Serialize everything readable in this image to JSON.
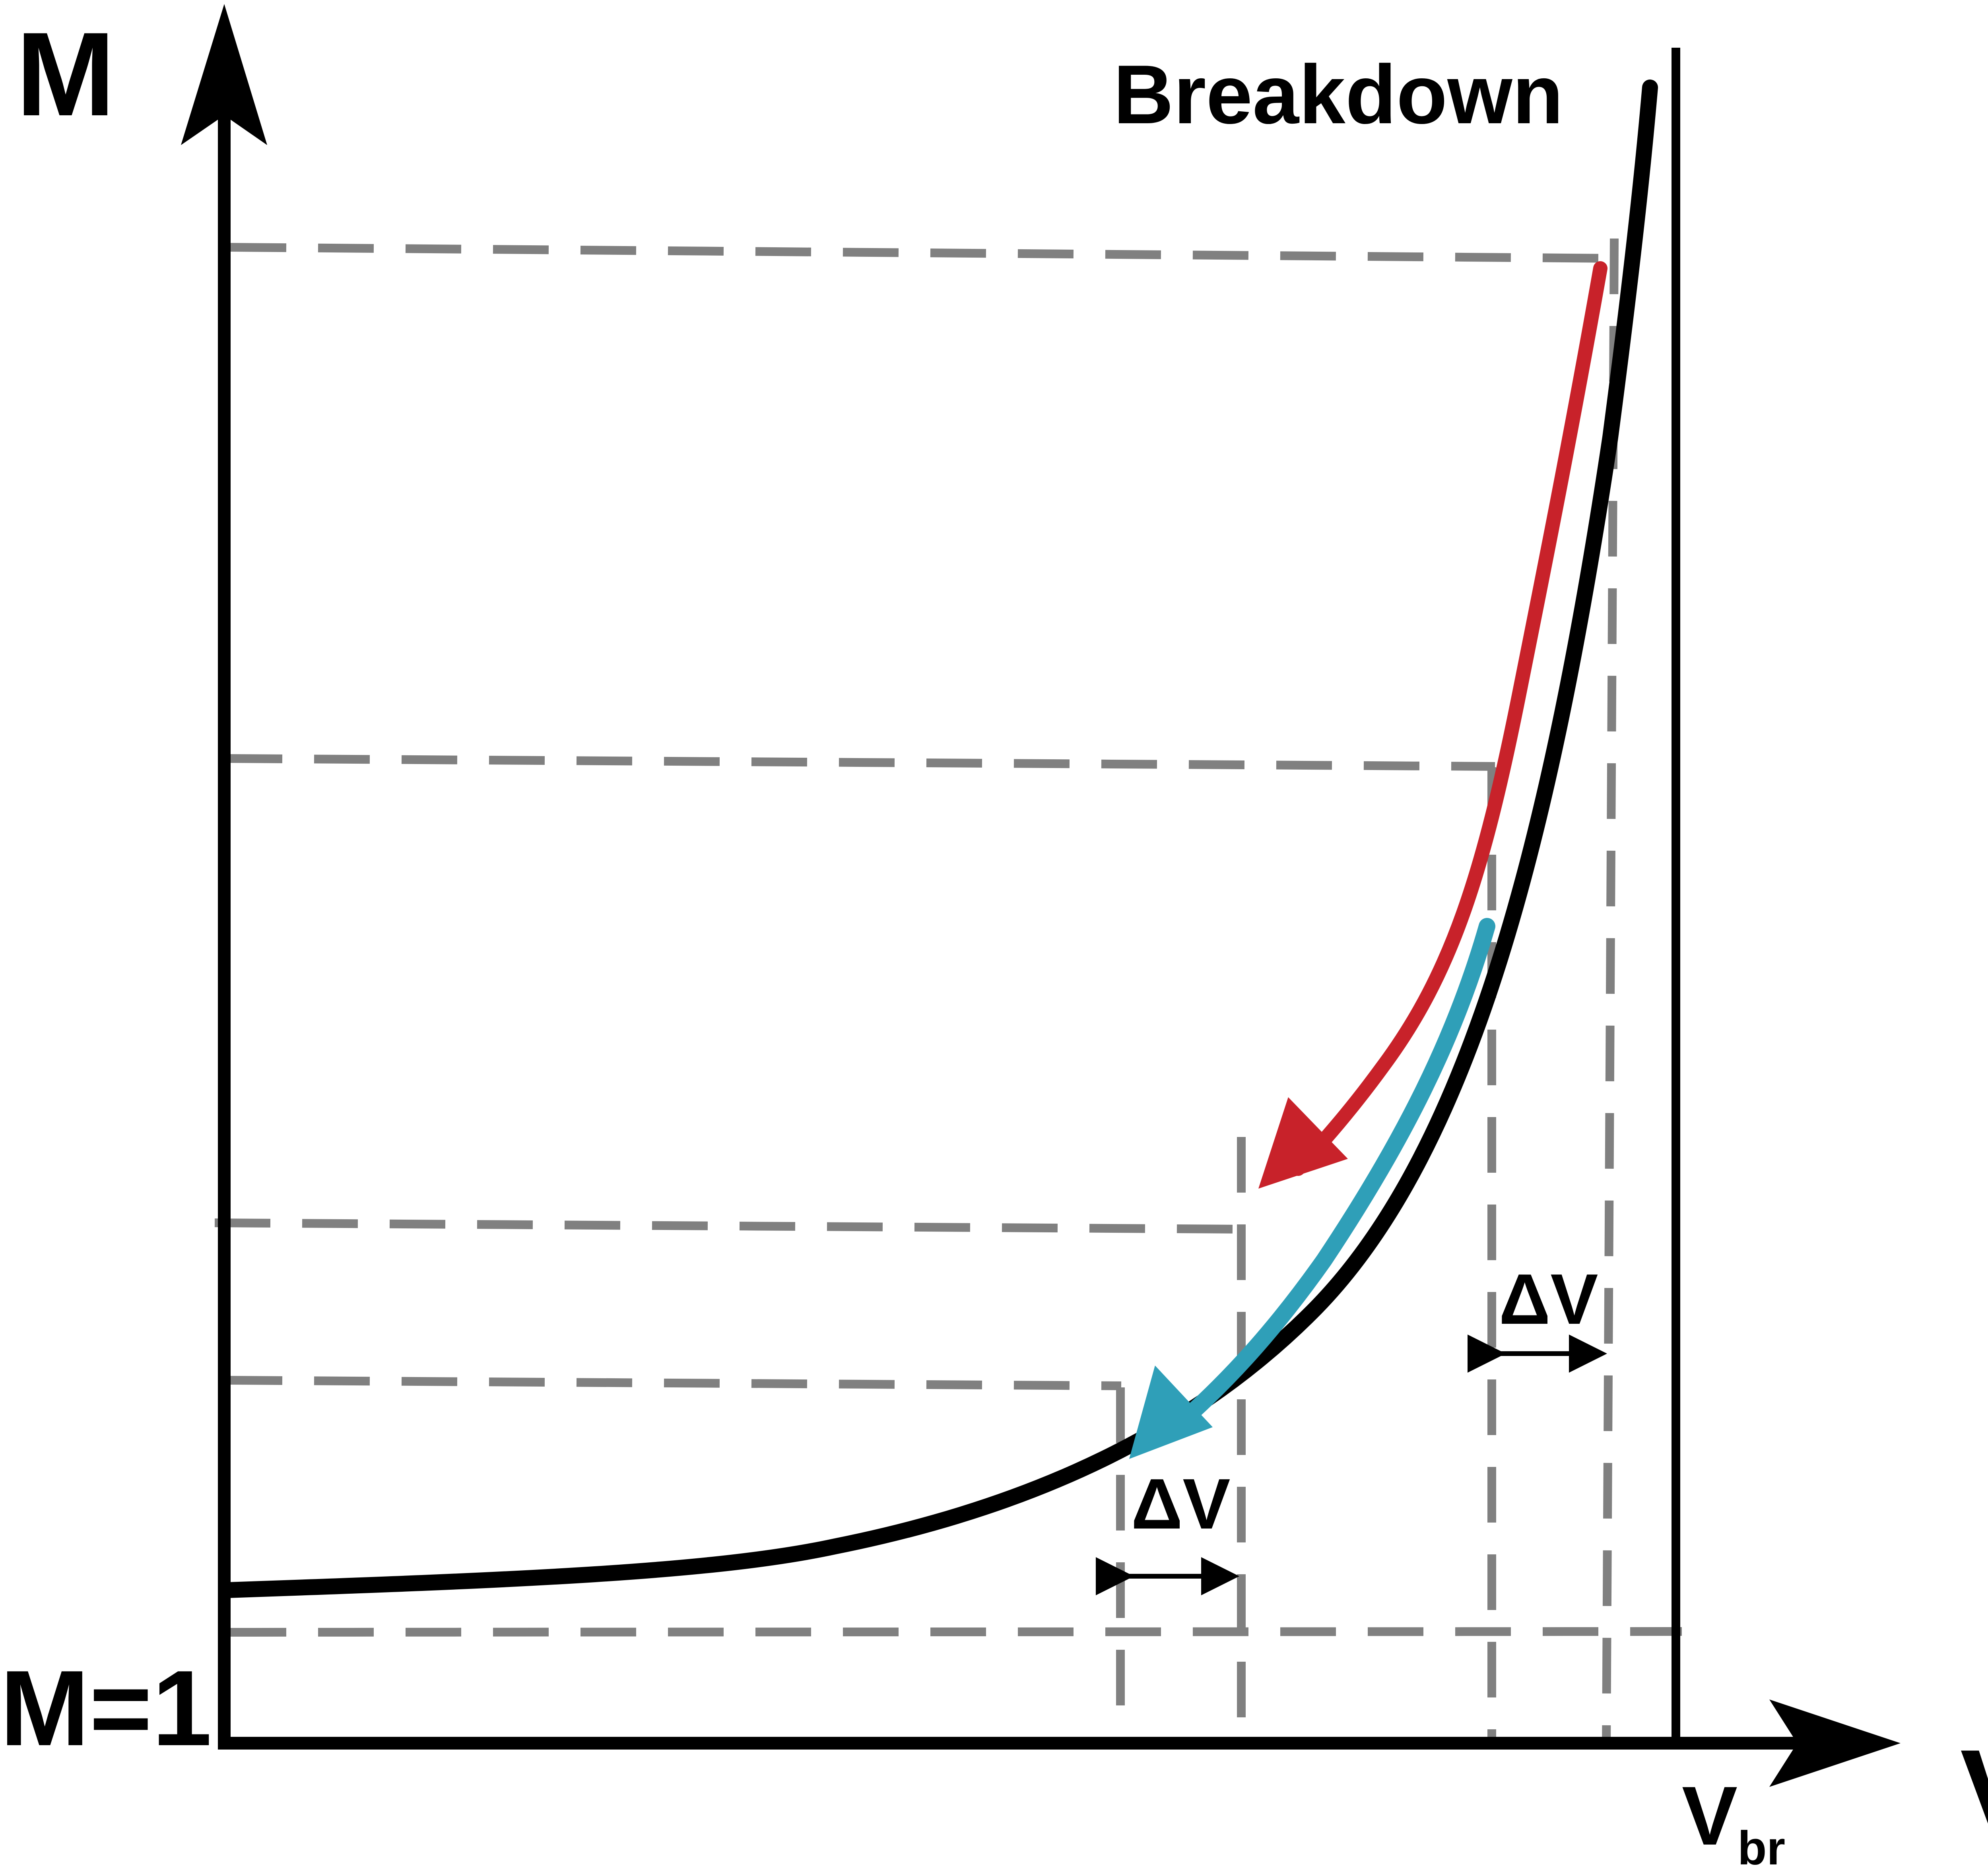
{
  "labels": {
    "y_axis": "M",
    "x_axis": "V",
    "breakdown": "Breakdown",
    "m_equals_one": "M=1",
    "vbr_main": "V",
    "vbr_sub": "br",
    "delta_v_left": "ΔV",
    "delta_v_right": "ΔV"
  },
  "colors": {
    "axis": "#000000",
    "curve": "#000000",
    "guide_dashes": "#808080",
    "red_arrow": "#c8222a",
    "blue_arrow": "#2f9fb8",
    "delta_arrows": "#000000"
  }
}
